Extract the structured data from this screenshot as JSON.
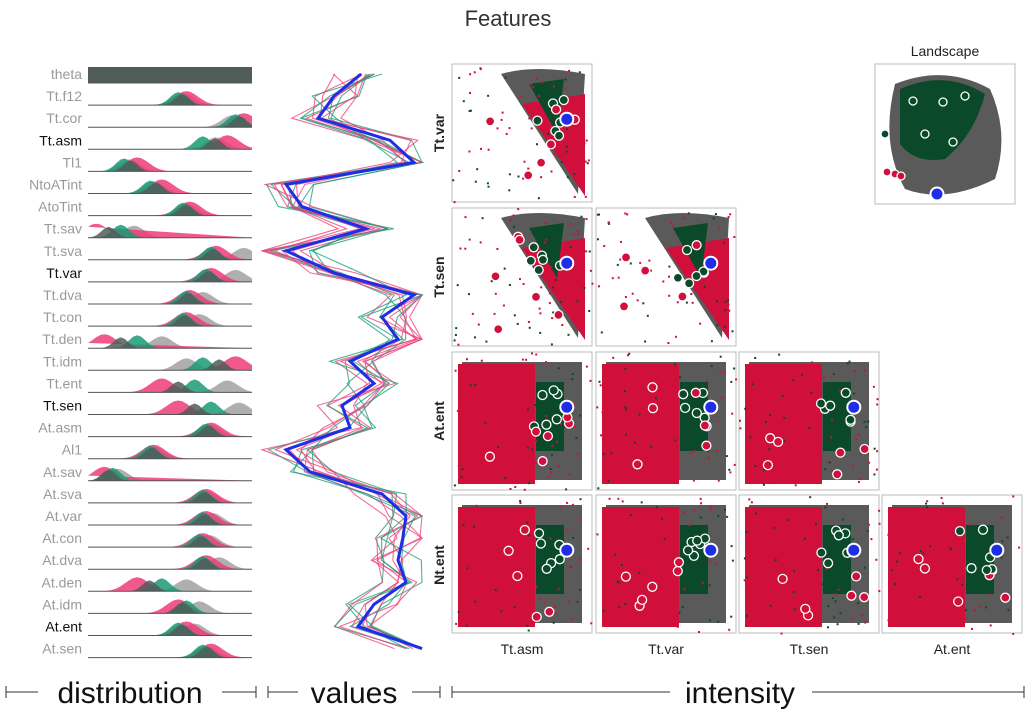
{
  "title": "Features",
  "colors": {
    "pink": "#ef3b7a",
    "green": "#1a9a73",
    "grey": "#a6a6a6",
    "darkgrey": "#505d5a",
    "blue": "#1e2ee6",
    "scatter_red": "#d0103a",
    "scatter_green": "#0a4a2a",
    "scatter_grey": "#5a5a5a"
  },
  "sections": {
    "distribution": "distribution",
    "values": "values",
    "intensity": "intensity"
  },
  "features": [
    {
      "name": "theta",
      "emph": false
    },
    {
      "name": "Tt.f12",
      "emph": false
    },
    {
      "name": "Tt.cor",
      "emph": false
    },
    {
      "name": "Tt.asm",
      "emph": true
    },
    {
      "name": "Tl1",
      "emph": false
    },
    {
      "name": "NtoATint",
      "emph": false
    },
    {
      "name": "AtoTint",
      "emph": false
    },
    {
      "name": "Tt.sav",
      "emph": false
    },
    {
      "name": "Tt.sva",
      "emph": false
    },
    {
      "name": "Tt.var",
      "emph": true
    },
    {
      "name": "Tt.dva",
      "emph": false
    },
    {
      "name": "Tt.con",
      "emph": false
    },
    {
      "name": "Tt.den",
      "emph": false
    },
    {
      "name": "Tt.idm",
      "emph": false
    },
    {
      "name": "Tt.ent",
      "emph": false
    },
    {
      "name": "Tt.sen",
      "emph": true
    },
    {
      "name": "At.asm",
      "emph": false
    },
    {
      "name": "Al1",
      "emph": false
    },
    {
      "name": "At.sav",
      "emph": false
    },
    {
      "name": "At.sva",
      "emph": false
    },
    {
      "name": "At.var",
      "emph": false
    },
    {
      "name": "At.con",
      "emph": false
    },
    {
      "name": "At.dva",
      "emph": false
    },
    {
      "name": "At.den",
      "emph": false
    },
    {
      "name": "At.idm",
      "emph": false
    },
    {
      "name": "At.ent",
      "emph": true
    },
    {
      "name": "At.sen",
      "emph": false
    }
  ],
  "chart_data": [
    {
      "type": "area",
      "name": "distribution",
      "note": "per-feature density ridgelines; peak position per group as fraction of row width",
      "groups": [
        "pink",
        "green",
        "grey"
      ],
      "rows": [
        {
          "feature": "theta",
          "full": true
        },
        {
          "feature": "Tt.f12",
          "pink": 0.6,
          "green": 0.55,
          "grey": 0.58
        },
        {
          "feature": "Tt.cor",
          "pink": 0.95,
          "green": 0.9,
          "grey": 0.88
        },
        {
          "feature": "Tt.asm",
          "pink": 0.85,
          "green": 0.7,
          "grey": 0.78
        },
        {
          "feature": "Tl1",
          "pink": 0.3,
          "green": 0.22,
          "grey": 0.25
        },
        {
          "feature": "NtoATint",
          "pink": 0.45,
          "green": 0.38,
          "grey": 0.4
        },
        {
          "feature": "AtoTint",
          "pink": 0.62,
          "green": 0.58,
          "grey": 0.6
        },
        {
          "feature": "Tt.sav",
          "pink": 0.05,
          "green": 0.2,
          "grey": 0.28
        },
        {
          "feature": "Tt.sva",
          "pink": 0.78,
          "green": 0.75,
          "grey": 0.95
        },
        {
          "feature": "Tt.var",
          "pink": 0.75,
          "green": 0.72,
          "grey": 0.9
        },
        {
          "feature": "Tt.dva",
          "pink": 0.62,
          "green": 0.6,
          "grey": 0.7
        },
        {
          "feature": "Tt.con",
          "pink": 0.6,
          "green": 0.58,
          "grey": 0.68
        },
        {
          "feature": "Tt.den",
          "pink": 0.1,
          "green": 0.3,
          "grey": 0.45
        },
        {
          "feature": "Tt.idm",
          "pink": 0.9,
          "green": 0.7,
          "grey": 0.6
        },
        {
          "feature": "Tt.ent",
          "pink": 0.45,
          "green": 0.65,
          "grey": 0.85
        },
        {
          "feature": "Tt.sen",
          "pink": 0.55,
          "green": 0.75,
          "grey": 0.92
        },
        {
          "feature": "At.asm",
          "pink": 0.75,
          "green": 0.72,
          "grey": 0.74
        },
        {
          "feature": "Al1",
          "pink": 0.4,
          "green": 0.38,
          "grey": 0.4
        },
        {
          "feature": "At.sav",
          "pink": 0.1,
          "green": 0.15,
          "grey": 0.18
        },
        {
          "feature": "At.sva",
          "pink": 0.72,
          "green": 0.7,
          "grey": 0.72
        },
        {
          "feature": "At.var",
          "pink": 0.72,
          "green": 0.7,
          "grey": 0.76
        },
        {
          "feature": "At.con",
          "pink": 0.7,
          "green": 0.68,
          "grey": 0.74
        },
        {
          "feature": "At.dva",
          "pink": 0.72,
          "green": 0.7,
          "grey": 0.8
        },
        {
          "feature": "At.den",
          "pink": 0.3,
          "green": 0.45,
          "grey": 0.6
        },
        {
          "feature": "At.idm",
          "pink": 0.55,
          "green": 0.6,
          "grey": 0.68
        },
        {
          "feature": "At.ent",
          "pink": 0.6,
          "green": 0.55,
          "grey": 0.65
        },
        {
          "feature": "At.sen",
          "pink": 0.75,
          "green": 0.7,
          "grey": 0.72
        }
      ]
    },
    {
      "type": "line",
      "name": "values",
      "note": "parallel-coordinate profile of the highlighted sample; x is normalized value (0-1) per feature",
      "highlight_color": "blue",
      "highlight": [
        0.62,
        0.45,
        0.35,
        0.8,
        0.95,
        0.15,
        0.25,
        0.65,
        0.15,
        0.45,
        0.95,
        0.75,
        0.85,
        0.55,
        0.7,
        0.5,
        0.55,
        0.15,
        0.3,
        0.75,
        0.9,
        0.88,
        0.85,
        0.9,
        0.7,
        0.6,
        1.0
      ],
      "background_series": [
        "pink",
        "green"
      ]
    },
    {
      "type": "scatter",
      "name": "intensity",
      "note": "lower-triangular scatterplot matrix",
      "x_labels": [
        "Tt.asm",
        "Tt.var",
        "Tt.sen",
        "At.ent"
      ],
      "y_labels": [
        "Tt.var",
        "Tt.sen",
        "At.ent",
        "Nt.ent"
      ],
      "landscape_label": "Landscape"
    }
  ]
}
